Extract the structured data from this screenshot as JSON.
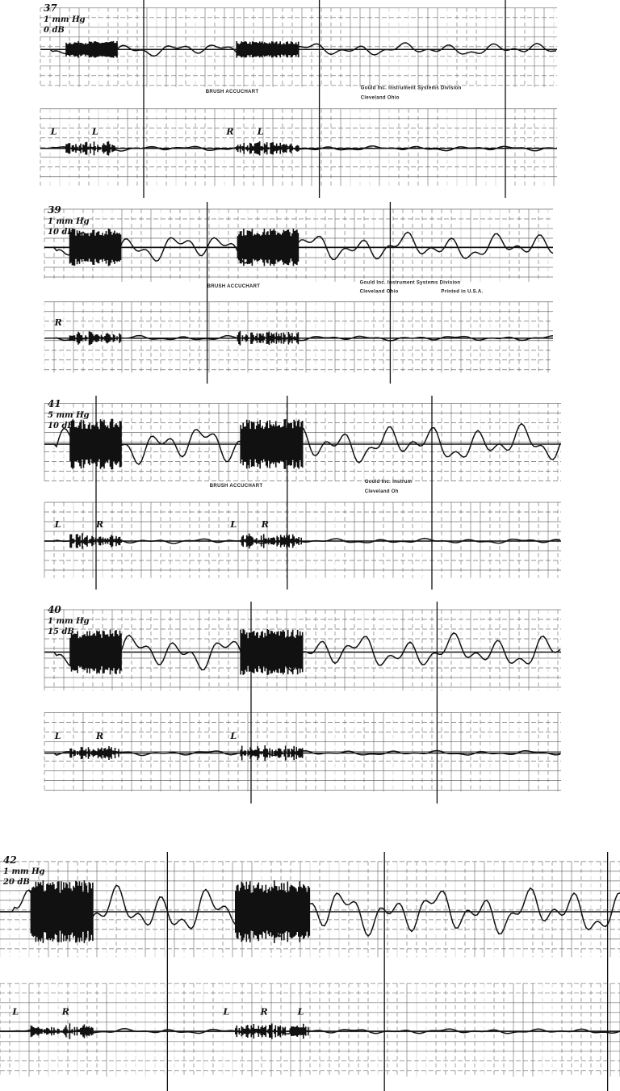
{
  "panels": [
    {
      "labels": [
        "37",
        "1 mm Hg",
        "0 dB"
      ],
      "print_texts": [
        "BRUSH ACCUCHART",
        "Gould Inc. Instrument Systems Division",
        "Cleveland Ohio"
      ],
      "markers": [
        "L",
        "L",
        "R",
        "L"
      ]
    },
    {
      "labels": [
        "39",
        "1 mm Hg",
        "10 dB"
      ],
      "print_texts": [
        "BRUSH ACCUCHART",
        "Gould Inc. Instrument Systems Division",
        "Cleveland Ohio",
        "Printed in U.S.A."
      ],
      "markers": [
        "R"
      ]
    },
    {
      "labels": [
        "41",
        "5 mm Hg",
        "10 dB"
      ],
      "print_texts": [
        "BRUSH ACCUCHART",
        "Gould Inc. Instrum",
        "Cleveland Oh"
      ],
      "markers": [
        "L",
        "R",
        "L",
        "R"
      ]
    },
    {
      "labels": [
        "40",
        "1 mm Hg",
        "15 dB"
      ],
      "print_texts": [],
      "markers": [
        "L",
        "R",
        "L"
      ]
    },
    {
      "labels": [
        "42",
        "1 mm Hg",
        "20 dB"
      ],
      "print_texts": [],
      "markers": [
        "L",
        "R",
        "L",
        "R",
        "L"
      ]
    }
  ]
}
